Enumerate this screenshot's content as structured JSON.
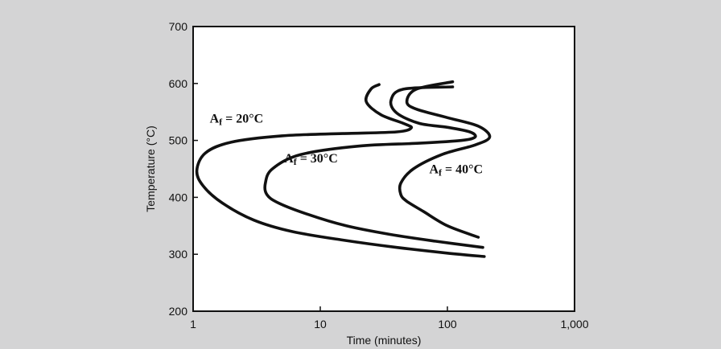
{
  "chart_data": {
    "type": "line",
    "title": "",
    "xlabel": "Time (minutes)",
    "ylabel": "Temperature (°C)",
    "x_scale": "log",
    "xlim": [
      1,
      1000
    ],
    "ylim": [
      200,
      700
    ],
    "x_ticks": [
      {
        "value": 1,
        "label": "1"
      },
      {
        "value": 10,
        "label": "10"
      },
      {
        "value": 100,
        "label": "100"
      },
      {
        "value": 1000,
        "label": "1,000"
      }
    ],
    "y_ticks": [
      {
        "value": 200,
        "label": "200"
      },
      {
        "value": 300,
        "label": "300"
      },
      {
        "value": 400,
        "label": "400"
      },
      {
        "value": 500,
        "label": "500"
      },
      {
        "value": 600,
        "label": "600"
      },
      {
        "value": 700,
        "label": "700"
      }
    ],
    "grid": false,
    "legend": "none",
    "line_color": "#111111",
    "series": [
      {
        "label": {
          "prefix": "A",
          "sub": "f",
          "suffix": " = 20°C",
          "x": 1.35,
          "y": 531
        },
        "points": [
          [
            195,
            296
          ],
          [
            100,
            302
          ],
          [
            40,
            312
          ],
          [
            15,
            325
          ],
          [
            6,
            340
          ],
          [
            3,
            360
          ],
          [
            1.7,
            390
          ],
          [
            1.2,
            420
          ],
          [
            1.07,
            447
          ],
          [
            1.25,
            478
          ],
          [
            2,
            497
          ],
          [
            5,
            508
          ],
          [
            15,
            512
          ],
          [
            40,
            515
          ],
          [
            52,
            522
          ],
          [
            45,
            530
          ],
          [
            30,
            545
          ],
          [
            23,
            568
          ],
          [
            25,
            590
          ],
          [
            29,
            598
          ]
        ]
      },
      {
        "label": {
          "prefix": "A",
          "sub": "f",
          "suffix": " = 30°C",
          "x": 5.2,
          "y": 461
        },
        "points": [
          [
            190,
            312
          ],
          [
            80,
            323
          ],
          [
            35,
            335
          ],
          [
            16,
            350
          ],
          [
            8,
            370
          ],
          [
            4.7,
            390
          ],
          [
            3.8,
            405
          ],
          [
            3.7,
            425
          ],
          [
            4.2,
            450
          ],
          [
            7,
            475
          ],
          [
            20,
            490
          ],
          [
            60,
            495
          ],
          [
            130,
            500
          ],
          [
            165,
            506
          ],
          [
            150,
            515
          ],
          [
            100,
            523
          ],
          [
            60,
            530
          ],
          [
            40,
            548
          ],
          [
            36,
            570
          ],
          [
            45,
            590
          ],
          [
            110,
            594
          ]
        ]
      },
      {
        "label": {
          "prefix": "A",
          "sub": "f",
          "suffix": " = 40°C",
          "x": 72,
          "y": 442
        },
        "points": [
          [
            175,
            330
          ],
          [
            100,
            350
          ],
          [
            65,
            375
          ],
          [
            48,
            393
          ],
          [
            43,
            405
          ],
          [
            43,
            425
          ],
          [
            54,
            450
          ],
          [
            90,
            475
          ],
          [
            165,
            492
          ],
          [
            215,
            506
          ],
          [
            175,
            525
          ],
          [
            100,
            540
          ],
          [
            57,
            555
          ],
          [
            48,
            568
          ],
          [
            57,
            590
          ],
          [
            110,
            603
          ]
        ]
      }
    ]
  }
}
